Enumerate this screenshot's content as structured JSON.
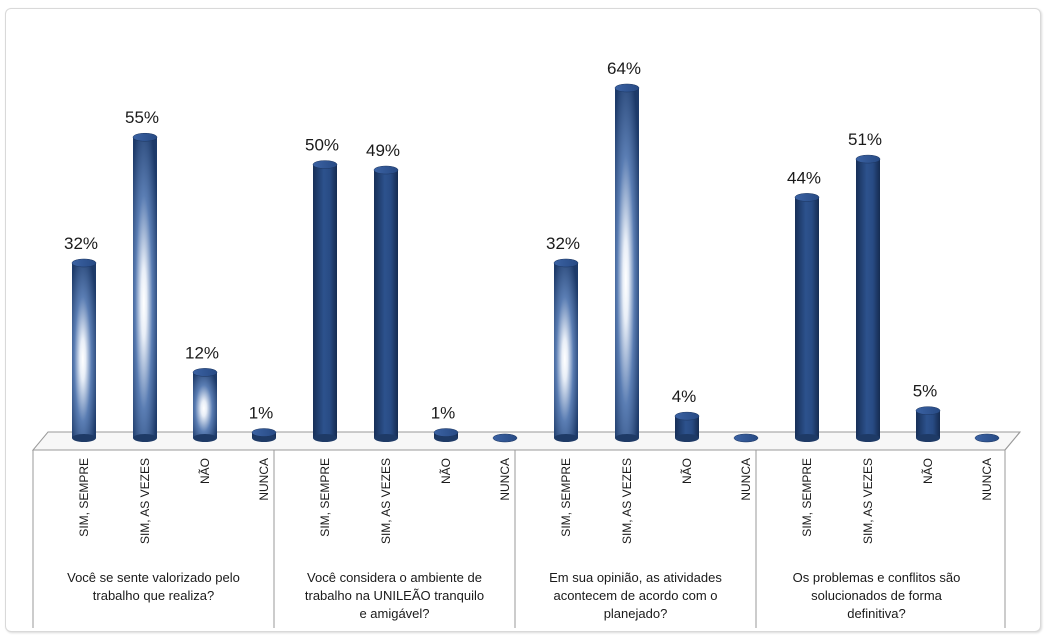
{
  "chart_data": {
    "type": "bar",
    "title": "",
    "xlabel": "",
    "ylabel": "",
    "ylim": [
      0,
      70
    ],
    "grid": false,
    "legend": "none",
    "value_format": "percent",
    "colors": {
      "bar_dark": "#1f3d6e",
      "bar_mid": "#2e5a9a",
      "bar_light": "#ffffff",
      "axis": "#8c8c8c"
    },
    "groups": [
      {
        "label": "Você se sente valorizado pelo trabalho que realiza?",
        "label_lines": [
          "Você se sente valorizado pelo",
          "trabalho que realiza?"
        ],
        "style": "highlighted",
        "categories": [
          "SIM, SEMPRE",
          "SIM, AS VEZES",
          "NÃO",
          "NUNCA"
        ],
        "values": [
          32,
          55,
          12,
          1
        ],
        "labels": [
          "32%",
          "55%",
          "12%",
          "1%"
        ]
      },
      {
        "label": "Você considera o ambiente de trabalho na UNILEÃO tranquilo e amigável?",
        "label_lines": [
          "Você considera o ambiente de",
          "trabalho na UNILEÃO tranquilo",
          "e amigável?"
        ],
        "style": "solid",
        "categories": [
          "SIM, SEMPRE",
          "SIM, AS VEZES",
          "NÃO",
          "NUNCA"
        ],
        "values": [
          50,
          49,
          1,
          0
        ],
        "labels": [
          "50%",
          "49%",
          "1%",
          ""
        ]
      },
      {
        "label": "Em sua opinião, as atividades acontecem de acordo com o planejado?",
        "label_lines": [
          "Em sua opinião, as atividades",
          "acontecem de acordo com o",
          "planejado?"
        ],
        "style": "highlighted",
        "categories": [
          "SIM, SEMPRE",
          "SIM, AS VEZES",
          "NÃO",
          "NUNCA"
        ],
        "values": [
          32,
          64,
          4,
          0
        ],
        "labels": [
          "32%",
          "64%",
          "4%",
          ""
        ]
      },
      {
        "label": "Os problemas e conflitos são solucionados de forma definitiva?",
        "label_lines": [
          "Os problemas e conflitos são",
          "solucionados de forma",
          "definitiva?"
        ],
        "style": "solid",
        "categories": [
          "SIM, SEMPRE",
          "SIM, AS VEZES",
          "NÃO",
          "NUNCA"
        ],
        "values": [
          44,
          51,
          5,
          0
        ],
        "labels": [
          "44%",
          "51%",
          "5%",
          ""
        ]
      }
    ]
  }
}
